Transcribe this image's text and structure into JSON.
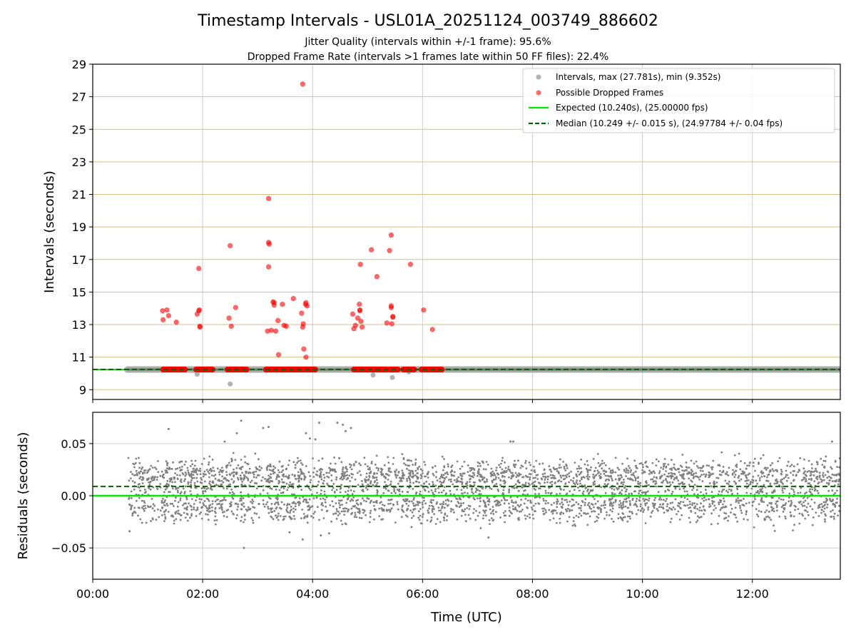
{
  "chart_data": {
    "type": "scatter",
    "title": "Timestamp Intervals - USL01A_20251124_003749_886602",
    "subtitle_lines": [
      "Jitter Quality (intervals within +/-1 frame): 95.6%",
      "Dropped Frame Rate (intervals >1 frames late within 50 FF files): 22.4%"
    ],
    "xlabel": "Time (UTC)",
    "x_unit": "hours",
    "xlim": [
      0,
      13.6
    ],
    "x_ticks": [
      0,
      2,
      4,
      6,
      8,
      10,
      12
    ],
    "x_tick_labels": [
      "00:00",
      "02:00",
      "04:00",
      "06:00",
      "08:00",
      "10:00",
      "12:00"
    ],
    "colors": {
      "intervals": "#9e9e9e",
      "intervals_dark": "#666666",
      "dropped": "#ff0000",
      "expected": "#00e600",
      "median": "#006400",
      "grid_top": "#d2c085",
      "grid": "#cccccc",
      "residuals": "#808080"
    },
    "top_panel": {
      "ylabel": "Intervals (seconds)",
      "ylim": [
        8.4,
        29
      ],
      "y_ticks": [
        9,
        11,
        13,
        15,
        17,
        19,
        21,
        23,
        25,
        27,
        29
      ],
      "legend_position": "upper-right",
      "legend": [
        {
          "label": "Intervals, max (27.781s), min (9.352s)",
          "kind": "marker",
          "color": "#9e9e9e"
        },
        {
          "label": "Possible Dropped Frames",
          "kind": "marker",
          "color": "#ff3333"
        },
        {
          "label": "Expected (10.240s), (25.00000 fps)",
          "kind": "line",
          "color": "#00e600"
        },
        {
          "label": "Median (10.249 +/- 0.015 s), (24.97784 +/- 0.04 fps)",
          "kind": "dashed",
          "color": "#006400"
        }
      ],
      "expected": 10.24,
      "median": 10.249,
      "interval_band": {
        "x_start": 0.63,
        "x_end": 13.6,
        "value": 10.24
      },
      "interval_outliers": [
        {
          "x": 1.9,
          "y": 9.95
        },
        {
          "x": 2.5,
          "y": 9.35
        },
        {
          "x": 5.1,
          "y": 9.9
        },
        {
          "x": 5.45,
          "y": 9.75
        },
        {
          "x": 5.75,
          "y": 10.1
        }
      ],
      "dropped_band_segments": [
        [
          1.28,
          1.68
        ],
        [
          1.88,
          2.18
        ],
        [
          2.45,
          2.8
        ],
        [
          3.15,
          4.05
        ],
        [
          4.75,
          5.35
        ],
        [
          5.4,
          5.55
        ],
        [
          5.65,
          5.85
        ],
        [
          5.98,
          6.35
        ]
      ],
      "dropped_points": [
        {
          "x": 1.27,
          "y": 13.85
        },
        {
          "x": 1.28,
          "y": 13.3
        },
        {
          "x": 1.35,
          "y": 13.9
        },
        {
          "x": 1.38,
          "y": 13.55
        },
        {
          "x": 1.52,
          "y": 13.15
        },
        {
          "x": 1.9,
          "y": 13.65
        },
        {
          "x": 1.93,
          "y": 13.85
        },
        {
          "x": 1.94,
          "y": 13.9
        },
        {
          "x": 1.93,
          "y": 16.45
        },
        {
          "x": 1.95,
          "y": 12.9
        },
        {
          "x": 1.95,
          "y": 12.85
        },
        {
          "x": 2.48,
          "y": 13.4
        },
        {
          "x": 2.5,
          "y": 17.85
        },
        {
          "x": 2.52,
          "y": 12.9
        },
        {
          "x": 2.6,
          "y": 14.05
        },
        {
          "x": 3.2,
          "y": 20.75
        },
        {
          "x": 3.2,
          "y": 18.05
        },
        {
          "x": 3.21,
          "y": 17.95
        },
        {
          "x": 3.2,
          "y": 16.55
        },
        {
          "x": 3.18,
          "y": 12.6
        },
        {
          "x": 3.25,
          "y": 12.65
        },
        {
          "x": 3.28,
          "y": 14.4
        },
        {
          "x": 3.3,
          "y": 14.35
        },
        {
          "x": 3.3,
          "y": 14.2
        },
        {
          "x": 3.33,
          "y": 12.6
        },
        {
          "x": 3.37,
          "y": 13.25
        },
        {
          "x": 3.38,
          "y": 11.15
        },
        {
          "x": 3.45,
          "y": 14.25
        },
        {
          "x": 3.48,
          "y": 12.95
        },
        {
          "x": 3.52,
          "y": 12.9
        },
        {
          "x": 3.65,
          "y": 14.6
        },
        {
          "x": 3.82,
          "y": 27.78
        },
        {
          "x": 3.8,
          "y": 13.7
        },
        {
          "x": 3.83,
          "y": 13.05
        },
        {
          "x": 3.82,
          "y": 12.85
        },
        {
          "x": 3.84,
          "y": 11.5
        },
        {
          "x": 3.87,
          "y": 14.25
        },
        {
          "x": 3.88,
          "y": 14.35
        },
        {
          "x": 3.9,
          "y": 14.15
        },
        {
          "x": 3.88,
          "y": 11.0
        },
        {
          "x": 4.73,
          "y": 13.65
        },
        {
          "x": 4.75,
          "y": 12.75
        },
        {
          "x": 4.78,
          "y": 12.95
        },
        {
          "x": 4.82,
          "y": 13.4
        },
        {
          "x": 4.85,
          "y": 14.25
        },
        {
          "x": 4.86,
          "y": 13.9
        },
        {
          "x": 4.86,
          "y": 13.85
        },
        {
          "x": 4.87,
          "y": 16.7
        },
        {
          "x": 4.88,
          "y": 13.2
        },
        {
          "x": 4.9,
          "y": 12.85
        },
        {
          "x": 5.07,
          "y": 17.6
        },
        {
          "x": 5.17,
          "y": 15.95
        },
        {
          "x": 5.35,
          "y": 13.1
        },
        {
          "x": 5.4,
          "y": 17.55
        },
        {
          "x": 5.43,
          "y": 18.5
        },
        {
          "x": 5.43,
          "y": 14.15
        },
        {
          "x": 5.43,
          "y": 14.05
        },
        {
          "x": 5.44,
          "y": 13.05
        },
        {
          "x": 5.46,
          "y": 13.5
        },
        {
          "x": 5.46,
          "y": 13.45
        },
        {
          "x": 5.78,
          "y": 16.7
        },
        {
          "x": 6.02,
          "y": 13.9
        },
        {
          "x": 6.18,
          "y": 12.7
        }
      ]
    },
    "bottom_panel": {
      "ylabel": "Residuals (seconds)",
      "ylim": [
        -0.08,
        0.08
      ],
      "y_ticks": [
        -0.05,
        0.0,
        0.05
      ],
      "y_tick_labels": [
        "−0.05",
        "0.00",
        "0.05"
      ],
      "expected": 0.0,
      "median": 0.009,
      "residual_cloud": {
        "x_start": 0.65,
        "x_end": 13.6,
        "count": 3600,
        "seed": 20251124,
        "levels": [
          0.02,
          -0.01,
          0.01,
          0.0,
          0.03,
          -0.02
        ],
        "level_weights": [
          0.3,
          0.22,
          0.15,
          0.13,
          0.1,
          0.1
        ],
        "jitter_sd": 0.0045
      },
      "residual_outliers": [
        {
          "x": 0.67,
          "y": -0.034
        },
        {
          "x": 1.38,
          "y": 0.064
        },
        {
          "x": 2.4,
          "y": 0.052
        },
        {
          "x": 2.62,
          "y": 0.06
        },
        {
          "x": 2.7,
          "y": 0.072
        },
        {
          "x": 2.75,
          "y": -0.05
        },
        {
          "x": 3.1,
          "y": 0.065
        },
        {
          "x": 3.2,
          "y": 0.066
        },
        {
          "x": 3.58,
          "y": -0.035
        },
        {
          "x": 3.82,
          "y": -0.042
        },
        {
          "x": 3.88,
          "y": 0.06
        },
        {
          "x": 3.95,
          "y": 0.055
        },
        {
          "x": 4.05,
          "y": 0.054
        },
        {
          "x": 4.12,
          "y": 0.07
        },
        {
          "x": 4.15,
          "y": -0.038
        },
        {
          "x": 4.3,
          "y": -0.036
        },
        {
          "x": 4.45,
          "y": 0.07
        },
        {
          "x": 4.55,
          "y": 0.068
        },
        {
          "x": 4.6,
          "y": 0.062
        },
        {
          "x": 4.7,
          "y": 0.065
        },
        {
          "x": 5.8,
          "y": -0.03
        },
        {
          "x": 7.2,
          "y": -0.04
        },
        {
          "x": 7.6,
          "y": 0.052
        },
        {
          "x": 7.65,
          "y": 0.052
        },
        {
          "x": 13.45,
          "y": 0.052
        }
      ]
    }
  }
}
